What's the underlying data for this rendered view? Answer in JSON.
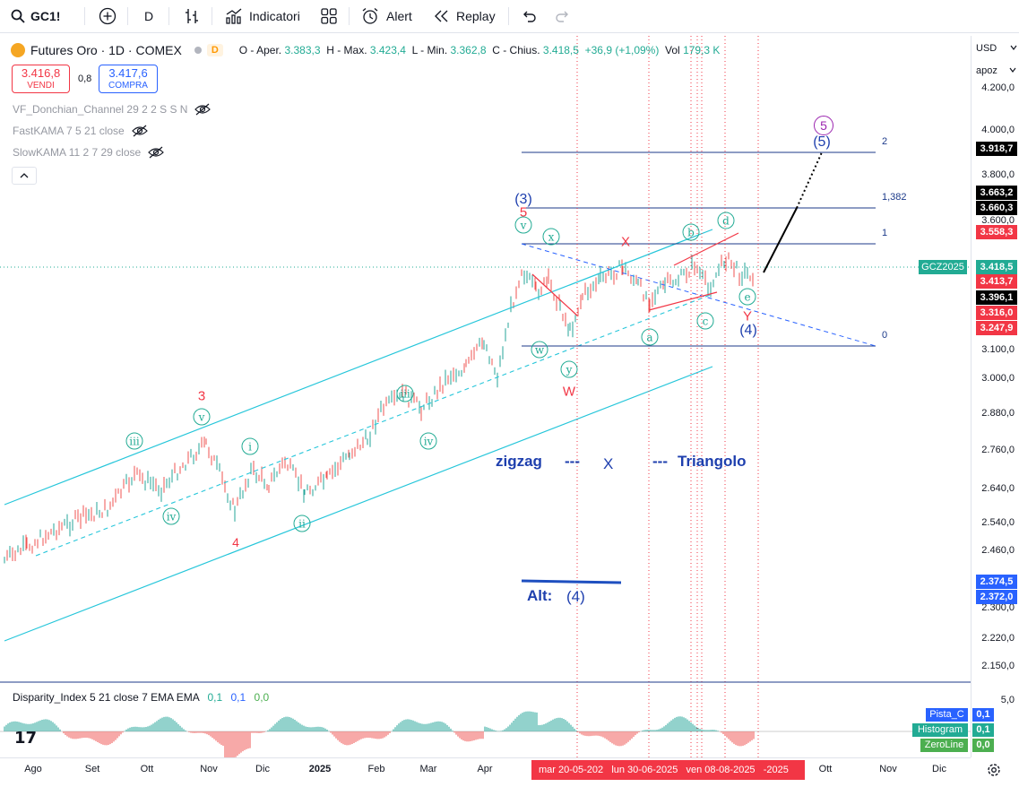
{
  "toolbar": {
    "symbol": "GC1!",
    "interval": "D",
    "indicators": "Indicatori",
    "alert": "Alert",
    "replay": "Replay"
  },
  "legend": {
    "title": "Futures Oro · 1D · COMEX",
    "badge": "D",
    "open_label": "O - Aper.",
    "open": "3.383,3",
    "high_label": "H - Max.",
    "high": "3.423,4",
    "low_label": "L - Min.",
    "low": "3.362,8",
    "close_label": "C - Chius.",
    "close": "3.418,5",
    "change": "+36,9 (+1,09%)",
    "vol_label": "Vol",
    "vol": "179,3 K"
  },
  "quote": {
    "sell_price": "3.416,8",
    "sell_label": "VENDI",
    "spread": "0,8",
    "buy_price": "3.417,6",
    "buy_label": "COMPRA"
  },
  "indicators": [
    "VF_Donchian_Channel 29 2 2 S S N",
    "FastKAMA 7 5 21 close",
    "SlowKAMA 11 2 7 29 close"
  ],
  "price_scale": {
    "currency": "USD",
    "mode": "apoz",
    "ticks": [
      "4.200,0",
      "4.000,0",
      "3.800,0",
      "3.600,0",
      "3.100,0",
      "3.000,0",
      "2.880,0",
      "2.760,0",
      "2.640,0",
      "2.540,0",
      "2.460,0",
      "2.300,0",
      "2.220,0",
      "2.150,0"
    ],
    "labels": [
      {
        "text": "3.918,7",
        "color": "#000000"
      },
      {
        "text": "3.663,2",
        "color": "#000000"
      },
      {
        "text": "3.660,3",
        "color": "#000000"
      },
      {
        "text": "3.558,3",
        "color": "#f23645"
      },
      {
        "text": "3.418,5",
        "color": "#22ab94"
      },
      {
        "text": "3.413,7",
        "color": "#f23645"
      },
      {
        "text": "3.396,1",
        "color": "#000000"
      },
      {
        "text": "3.316,0",
        "color": "#f23645"
      },
      {
        "text": "3.247,9",
        "color": "#f23645"
      },
      {
        "text": "2.374,5",
        "color": "#2962ff"
      },
      {
        "text": "2.372,0",
        "color": "#2962ff"
      }
    ],
    "symbol_tag": "GCZ2025"
  },
  "fib_levels": [
    "2",
    "1,382",
    "1",
    "0"
  ],
  "annotations": {
    "zigzag": "zigzag",
    "dash1": "---",
    "x": "X",
    "dash2": "---",
    "triangolo": "Triangolo",
    "alt": "Alt:",
    "alt_wave": "(4)"
  },
  "waves_red": [
    "3",
    "4",
    "W",
    "X",
    "Y",
    "5"
  ],
  "waves_blue": [
    "(3)",
    "(4)",
    "(5)"
  ],
  "wave_purple": "5",
  "waves_green": [
    "iii",
    "iv",
    "v",
    "i",
    "ii",
    "iii",
    "iv",
    "v",
    "w",
    "x",
    "y",
    "a",
    "b",
    "c",
    "d",
    "e"
  ],
  "oscillator": {
    "title": "Disparity_Index 5 21 close 7 EMA EMA",
    "v1": "0,1",
    "v2": "0,1",
    "v3": "0,0",
    "scale_top": "5,0",
    "tags": [
      {
        "name": "Pista_C",
        "value": "0,1",
        "color": "#2962ff"
      },
      {
        "name": "Histogram",
        "value": "0,1",
        "color": "#22ab94"
      },
      {
        "name": "ZeroLine",
        "value": "0,0",
        "color": "#4caf50"
      }
    ]
  },
  "time_axis": {
    "labels": [
      "Ago",
      "Set",
      "Ott",
      "Nov",
      "Dic",
      "2025",
      "Feb",
      "Mar",
      "Apr",
      "Ott",
      "Nov",
      "Dic"
    ],
    "highlight": "mar 20-05-202   lun 30-06-2025   ven 08-08-2025   -2025"
  },
  "colors": {
    "green": "#22ab94",
    "red": "#f23645",
    "blue": "#2962ff",
    "navy": "#1c3a8a",
    "cyan": "#00bcd4",
    "purple": "#9c27b0"
  }
}
